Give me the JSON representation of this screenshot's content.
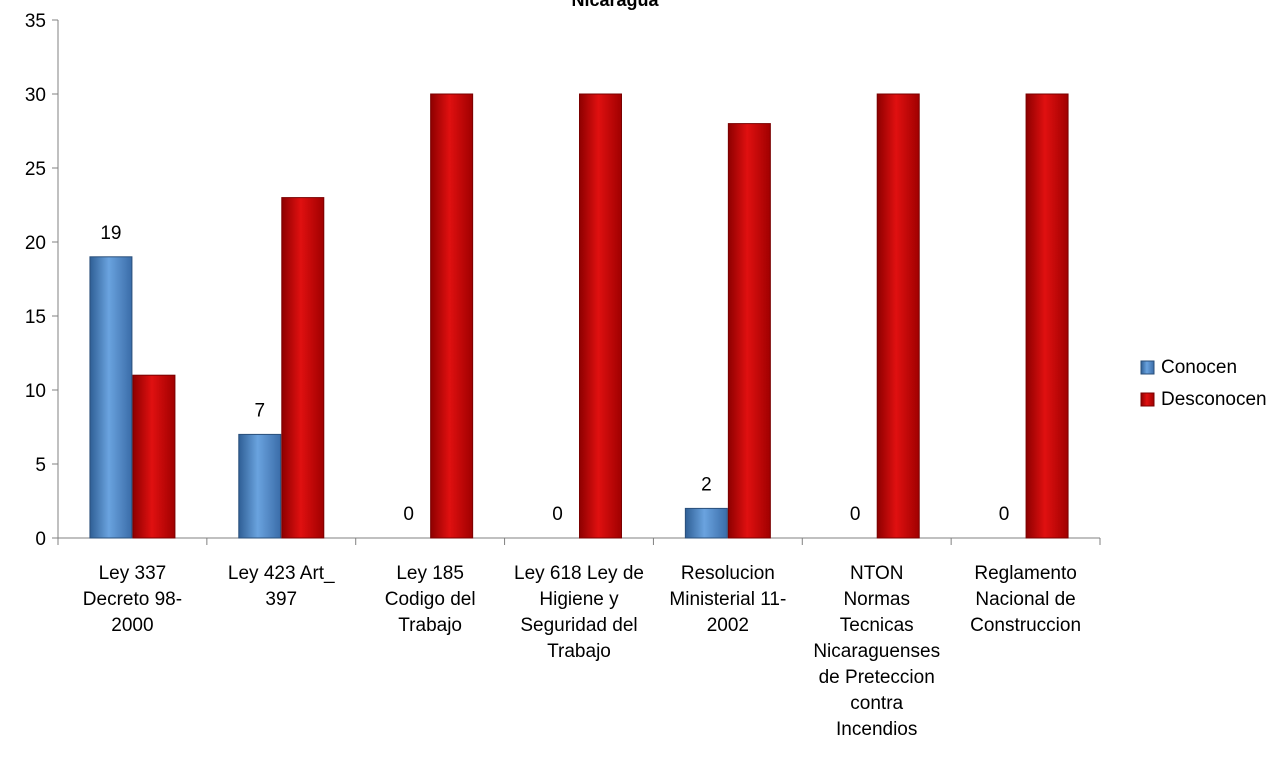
{
  "chart_data": {
    "type": "bar",
    "title": "Nicaragua",
    "categories": [
      [
        "Ley 337",
        "Decreto 98-",
        "2000"
      ],
      [
        "Ley 423 Art_",
        "397"
      ],
      [
        "Ley 185",
        "Codigo del",
        "Trabajo"
      ],
      [
        "Ley 618 Ley de",
        "Higiene y",
        "Seguridad del",
        "Trabajo"
      ],
      [
        "Resolucion",
        "Ministerial 11-",
        "2002"
      ],
      [
        "NTON",
        "Normas",
        "Tecnicas",
        "Nicaraguenses",
        "de Preteccion",
        "contra",
        "Incendios"
      ],
      [
        "Reglamento",
        "Nacional de",
        "Construccion"
      ]
    ],
    "series": [
      {
        "name": "Conocen",
        "color": "#4f81bd",
        "values": [
          19,
          7,
          0,
          0,
          2,
          0,
          0
        ],
        "show_labels": true
      },
      {
        "name": "Desconocen",
        "color": "#c00000",
        "values": [
          11,
          23,
          30,
          30,
          28,
          30,
          30
        ],
        "show_labels": false
      }
    ],
    "ylim": [
      0,
      35
    ],
    "yticks": [
      0,
      5,
      10,
      15,
      20,
      25,
      30,
      35
    ],
    "grid": false,
    "legend": "right"
  }
}
